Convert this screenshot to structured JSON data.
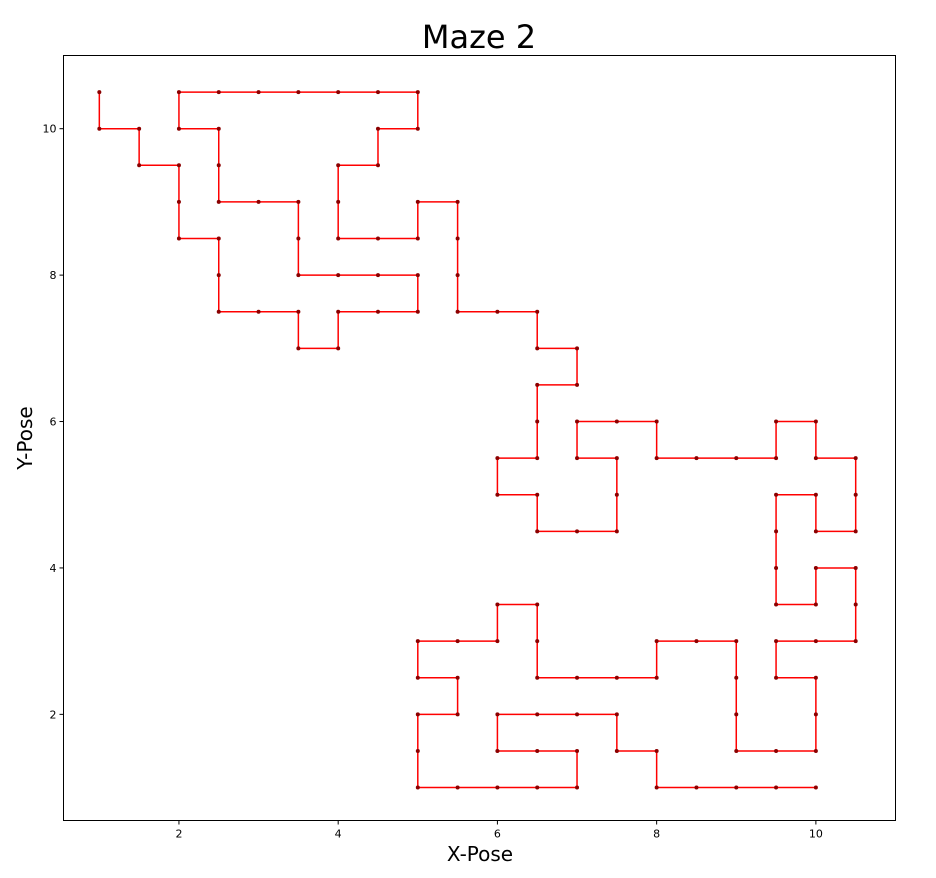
{
  "chart_data": {
    "type": "line",
    "title": "Maze 2",
    "xlabel": "X-Pose",
    "ylabel": "Y-Pose",
    "xlim": [
      0.55,
      11.0
    ],
    "ylim": [
      0.55,
      11.0
    ],
    "xticks": [
      2,
      4,
      6,
      8,
      10
    ],
    "yticks": [
      2,
      4,
      6,
      8,
      10
    ],
    "xtick_labels": [
      "2",
      "4",
      "6",
      "8",
      "10"
    ],
    "ytick_labels": [
      "2",
      "4",
      "6",
      "8",
      "10"
    ],
    "grid": false,
    "legend": "none",
    "colors": {
      "line": "#ff0000",
      "marker": "#8b0000"
    },
    "series": [
      {
        "points": [
          [
            1,
            10.5
          ],
          [
            1,
            10
          ],
          [
            1.5,
            10
          ],
          [
            1.5,
            9.5
          ],
          [
            2,
            9.5
          ],
          [
            2,
            9
          ],
          [
            2,
            8.5
          ],
          [
            2.5,
            8.5
          ],
          [
            2.5,
            8
          ],
          [
            2.5,
            7.5
          ],
          [
            3,
            7.5
          ],
          [
            3.5,
            7.5
          ],
          [
            3.5,
            7
          ],
          [
            4,
            7
          ],
          [
            4,
            7.5
          ],
          [
            4.5,
            7.5
          ],
          [
            5,
            7.5
          ],
          [
            5,
            8
          ],
          [
            4.5,
            8
          ],
          [
            4,
            8
          ],
          [
            3.5,
            8
          ],
          [
            3.5,
            8.5
          ],
          [
            3.5,
            9
          ],
          [
            3,
            9
          ],
          [
            2.5,
            9
          ],
          [
            2.5,
            9.5
          ],
          [
            2.5,
            10
          ],
          [
            2,
            10
          ],
          [
            2,
            10.5
          ],
          [
            2.5,
            10.5
          ],
          [
            3,
            10.5
          ],
          [
            3.5,
            10.5
          ],
          [
            4,
            10.5
          ],
          [
            4.5,
            10.5
          ],
          [
            5,
            10.5
          ],
          [
            5,
            10
          ],
          [
            4.5,
            10
          ],
          [
            4.5,
            9.5
          ],
          [
            4,
            9.5
          ],
          [
            4,
            9
          ],
          [
            4,
            8.5
          ],
          [
            4.5,
            8.5
          ],
          [
            5,
            8.5
          ],
          [
            5,
            9
          ],
          [
            5.5,
            9
          ],
          [
            5.5,
            8.5
          ],
          [
            5.5,
            8
          ],
          [
            5.5,
            7.5
          ],
          [
            6,
            7.5
          ],
          [
            6.5,
            7.5
          ],
          [
            6.5,
            7
          ],
          [
            7,
            7
          ],
          [
            7,
            6.5
          ],
          [
            6.5,
            6.5
          ],
          [
            6.5,
            6
          ],
          [
            6.5,
            5.5
          ],
          [
            6,
            5.5
          ],
          [
            6,
            5
          ],
          [
            6.5,
            5
          ],
          [
            6.5,
            4.5
          ],
          [
            7,
            4.5
          ],
          [
            7.5,
            4.5
          ],
          [
            7.5,
            5
          ],
          [
            7.5,
            5.5
          ],
          [
            7,
            5.5
          ],
          [
            7,
            6
          ],
          [
            7.5,
            6
          ],
          [
            8,
            6
          ],
          [
            8,
            5.5
          ],
          [
            8.5,
            5.5
          ],
          [
            9,
            5.5
          ],
          [
            9.5,
            5.5
          ],
          [
            9.5,
            6
          ],
          [
            10,
            6
          ],
          [
            10,
            5.5
          ],
          [
            10.5,
            5.5
          ],
          [
            10.5,
            5
          ],
          [
            10.5,
            4.5
          ],
          [
            10,
            4.5
          ],
          [
            10,
            5
          ],
          [
            9.5,
            5
          ],
          [
            9.5,
            4.5
          ],
          [
            9.5,
            4
          ],
          [
            9.5,
            3.5
          ],
          [
            10,
            3.5
          ],
          [
            10,
            4
          ],
          [
            10.5,
            4
          ],
          [
            10.5,
            3.5
          ],
          [
            10.5,
            3
          ],
          [
            10,
            3
          ],
          [
            9.5,
            3
          ],
          [
            9.5,
            2.5
          ],
          [
            10,
            2.5
          ],
          [
            10,
            2
          ],
          [
            10,
            1.5
          ],
          [
            9.5,
            1.5
          ],
          [
            9,
            1.5
          ],
          [
            9,
            2
          ],
          [
            9,
            2.5
          ],
          [
            9,
            3
          ],
          [
            8.5,
            3
          ],
          [
            8,
            3
          ],
          [
            8,
            2.5
          ],
          [
            7.5,
            2.5
          ],
          [
            7,
            2.5
          ],
          [
            6.5,
            2.5
          ],
          [
            6.5,
            3
          ],
          [
            6.5,
            3.5
          ],
          [
            6,
            3.5
          ],
          [
            6,
            3
          ],
          [
            5.5,
            3
          ],
          [
            5,
            3
          ],
          [
            5,
            2.5
          ],
          [
            5.5,
            2.5
          ],
          [
            5.5,
            2
          ],
          [
            5,
            2
          ],
          [
            5,
            1.5
          ],
          [
            5,
            1
          ],
          [
            5.5,
            1
          ],
          [
            6,
            1
          ],
          [
            6.5,
            1
          ],
          [
            7,
            1
          ],
          [
            7,
            1.5
          ],
          [
            6.5,
            1.5
          ],
          [
            6,
            1.5
          ],
          [
            6,
            2
          ],
          [
            6.5,
            2
          ],
          [
            7,
            2
          ],
          [
            7.5,
            2
          ],
          [
            7.5,
            1.5
          ],
          [
            8,
            1.5
          ],
          [
            8,
            1
          ],
          [
            8.5,
            1
          ],
          [
            9,
            1
          ],
          [
            9.5,
            1
          ],
          [
            10,
            1
          ]
        ]
      }
    ]
  }
}
